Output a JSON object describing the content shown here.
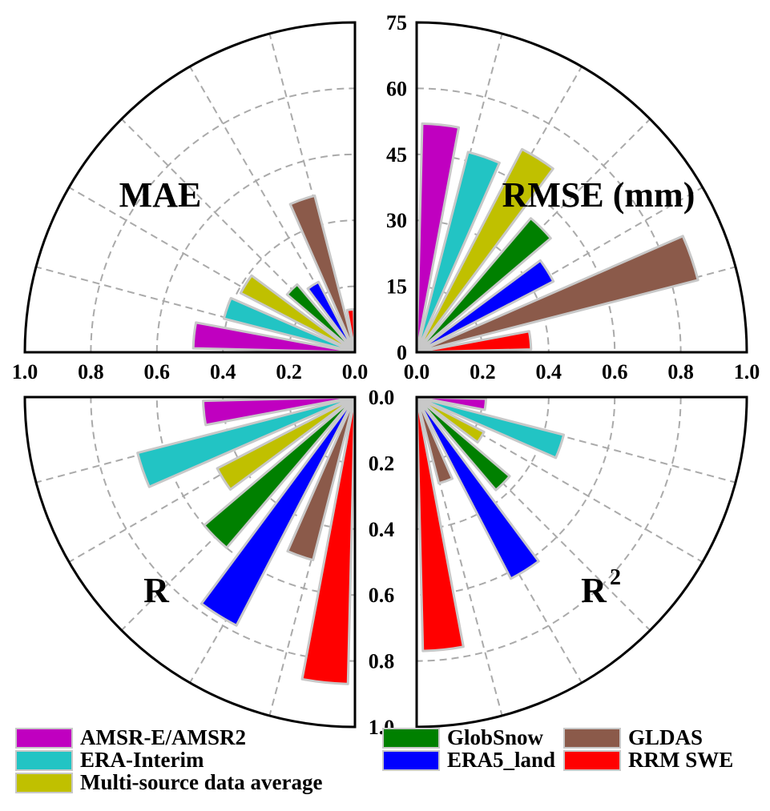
{
  "chart_data": {
    "type": "polar-bar",
    "colors": {
      "AMSR-E/AMSR2": "#c000c0",
      "ERA-Interim": "#22c4c4",
      "GlobSnow": "#008000",
      "ERA5_land": "#0000ff",
      "GLDAS": "#8b5a4a",
      "RRM SWE": "#ff0000",
      "Multi-source data average": "#c0c000"
    },
    "legend": {
      "position": "bottom",
      "items": [
        "AMSR-E/AMSR2",
        "ERA-Interim",
        "Multi-source data average",
        "GlobSnow",
        "ERA5_land",
        "GLDAS",
        "RRM SWE"
      ]
    },
    "quadrants": [
      {
        "key": "mae",
        "title": "MAE",
        "range": [
          0,
          1.0
        ],
        "ticks": [
          "1.0",
          "0.8",
          "0.6",
          "0.4",
          "0.2",
          "0.0"
        ],
        "series_order": [
          "AMSR-E/AMSR2",
          "ERA-Interim",
          "Multi-source data average",
          "GlobSnow",
          "ERA5_land",
          "GLDAS",
          "RRM SWE"
        ],
        "values": [
          0.49,
          0.41,
          0.39,
          0.27,
          0.24,
          0.49,
          0.13
        ]
      },
      {
        "key": "rmse",
        "title": "RMSE (mm)",
        "range": [
          0,
          75
        ],
        "ticks": [
          "0",
          "15",
          "30",
          "45",
          "60",
          "75"
        ],
        "series_order": [
          "AMSR-E/AMSR2",
          "ERA-Interim",
          "Multi-source data average",
          "GlobSnow",
          "ERA5_land",
          "GLDAS",
          "RRM SWE"
        ],
        "values": [
          52,
          47,
          52,
          40,
          35,
          66,
          26
        ]
      },
      {
        "key": "r",
        "title": "R",
        "range": [
          0,
          1.0
        ],
        "ticks": [
          "0.0",
          "0.2",
          "0.4",
          "0.6",
          "0.8",
          "1.0"
        ],
        "series_order": [
          "RRM SWE",
          "GLDAS",
          "ERA5_land",
          "GlobSnow",
          "Multi-source data average",
          "ERA-Interim",
          "AMSR-E/AMSR2"
        ],
        "values": [
          0.87,
          0.51,
          0.78,
          0.6,
          0.47,
          0.68,
          0.46
        ]
      },
      {
        "key": "r2",
        "title": "R",
        "title_sup": "2",
        "range": [
          0,
          1.0
        ],
        "ticks": [
          "0.0",
          "0.2",
          "0.4",
          "0.6",
          "0.8",
          "1.0"
        ],
        "series_order": [
          "AMSR-E/AMSR2",
          "ERA-Interim",
          "Multi-source data average",
          "GlobSnow",
          "ERA5_land",
          "GLDAS",
          "RRM SWE"
        ],
        "values": [
          0.21,
          0.46,
          0.23,
          0.37,
          0.62,
          0.27,
          0.77
        ]
      }
    ]
  }
}
